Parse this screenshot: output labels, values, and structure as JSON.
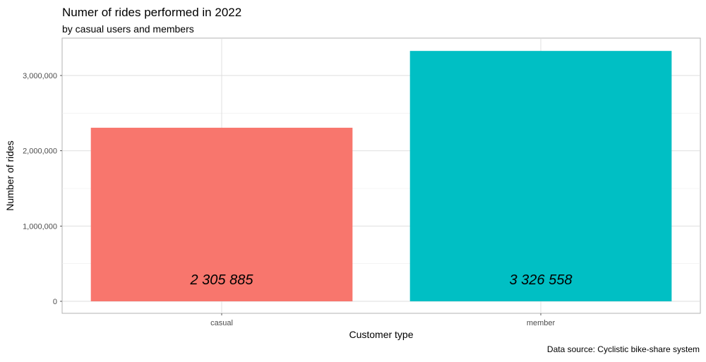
{
  "chart_data": {
    "type": "bar",
    "title": "Numer of rides performed in 2022",
    "subtitle": "by casual users and members",
    "xlabel": "Customer type",
    "ylabel": "Number of rides",
    "caption": "Data source: Cyclistic bike-share system",
    "categories": [
      "casual",
      "member"
    ],
    "values": [
      2305885,
      3326558
    ],
    "data_labels": [
      "2 305 885",
      "3 326 558"
    ],
    "colors": [
      "#F8766D",
      "#00BFC4"
    ],
    "ylim": [
      0,
      3500000
    ],
    "yticks": [
      0,
      1000000,
      2000000,
      3000000
    ],
    "ytick_labels": [
      "0",
      "1,000,000",
      "2,000,000",
      "3,000,000"
    ],
    "grid": true,
    "legend": "none"
  }
}
